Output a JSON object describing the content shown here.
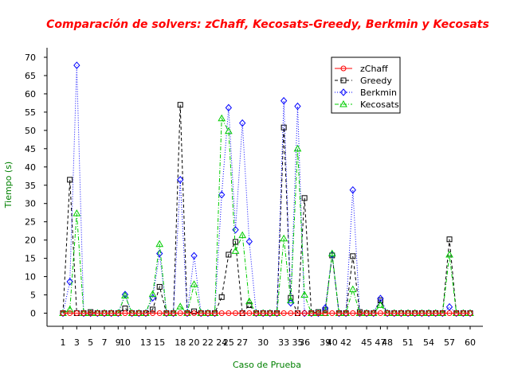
{
  "chart_data": {
    "type": "line",
    "title": "Comparación de solvers: zChaff, Kecosats-Greedy, Berkmin y Kecosats",
    "xlabel": "Caso de Prueba",
    "ylabel": "Tiempo (s)",
    "xlim": [
      1,
      60
    ],
    "ylim": [
      0,
      70
    ],
    "xticks": [
      1,
      3,
      5,
      7,
      9,
      10,
      13,
      15,
      18,
      20,
      22,
      24,
      25,
      27,
      30,
      33,
      35,
      36,
      39,
      40,
      42,
      45,
      47,
      48,
      51,
      54,
      57,
      60
    ],
    "xtick_labels": [
      "1",
      "3",
      "5",
      "7",
      "9",
      "10",
      "13",
      "15",
      "18",
      "20",
      "22",
      "24",
      "25",
      "27",
      "30",
      "33",
      "35",
      "36",
      "39",
      "40",
      "42",
      "45",
      "47",
      "48",
      "51",
      "54",
      "57",
      "60"
    ],
    "yticks": [
      0,
      5,
      10,
      15,
      20,
      25,
      30,
      35,
      40,
      45,
      50,
      55,
      60,
      65,
      70
    ],
    "ytick_labels": [
      "0",
      "5",
      "10",
      "15",
      "20",
      "25",
      "30",
      "35",
      "40",
      "45",
      "50",
      "55",
      "60",
      "65",
      "70"
    ],
    "grid": false,
    "legend_position": "top-right",
    "x": [
      1,
      2,
      3,
      4,
      5,
      6,
      7,
      8,
      9,
      10,
      11,
      12,
      13,
      14,
      15,
      16,
      17,
      18,
      19,
      20,
      21,
      22,
      23,
      24,
      25,
      26,
      27,
      28,
      29,
      30,
      31,
      32,
      33,
      34,
      35,
      36,
      37,
      38,
      39,
      40,
      41,
      42,
      43,
      44,
      45,
      46,
      47,
      48,
      49,
      50,
      51,
      52,
      53,
      54,
      55,
      56,
      57,
      58,
      59,
      60
    ],
    "series": [
      {
        "name": "zChaff",
        "color": "#ff0000",
        "marker": "circle",
        "dash": "solid",
        "values": [
          0,
          0,
          0,
          0,
          0,
          0,
          0,
          0,
          0,
          0,
          0,
          0,
          0,
          0,
          0,
          0,
          0,
          0,
          0,
          0,
          0,
          0,
          0,
          0,
          0,
          0,
          0,
          0,
          0,
          0,
          0,
          0,
          0,
          0,
          0,
          0,
          0,
          0,
          0,
          0,
          0,
          0,
          0,
          0,
          0,
          0,
          0,
          0,
          0,
          0,
          0,
          0,
          0,
          0,
          0,
          0,
          0,
          0,
          0,
          0
        ]
      },
      {
        "name": "Greedy",
        "color": "#000000",
        "marker": "square",
        "dash": "dashed",
        "values": [
          0,
          36.5,
          0,
          0,
          0.3,
          0,
          0,
          0,
          0,
          1.3,
          0,
          0,
          0,
          1,
          7.2,
          0,
          0,
          57,
          0,
          0.5,
          0,
          0,
          0,
          4.4,
          16,
          19.5,
          0,
          2.2,
          0,
          0,
          0,
          0,
          50.8,
          4.2,
          0,
          31.5,
          0,
          0.3,
          0.8,
          15.8,
          0,
          0,
          15.6,
          0.3,
          0,
          0,
          3.5,
          0,
          0,
          0,
          0,
          0,
          0,
          0,
          0,
          0,
          20.2,
          0,
          0,
          0
        ]
      },
      {
        "name": "Berkmin",
        "color": "#0000ff",
        "marker": "diamond",
        "dash": "dotted",
        "values": [
          0,
          8.6,
          67.8,
          0,
          0,
          0,
          0,
          0,
          0,
          5.1,
          0,
          0,
          0,
          4.2,
          16.3,
          0,
          0,
          36.5,
          0,
          15.7,
          0,
          0,
          0,
          32.4,
          56.2,
          22.8,
          52,
          19.6,
          0,
          0,
          0,
          0,
          58.1,
          2.8,
          56.6,
          0,
          0,
          0,
          1.4,
          16,
          0,
          0,
          33.7,
          0,
          0,
          0,
          4,
          0,
          0,
          0,
          0,
          0,
          0,
          0,
          0,
          0,
          1.7,
          0,
          0,
          0
        ]
      },
      {
        "name": "Kecosats",
        "color": "#00cc00",
        "marker": "triangle",
        "dash": "dashdot",
        "values": [
          0,
          1,
          27.3,
          0,
          0,
          0,
          0,
          0,
          0,
          4.8,
          0,
          0,
          0,
          5.2,
          18.9,
          0,
          0,
          1.8,
          0,
          7.9,
          0,
          0,
          0,
          53.3,
          49.8,
          17,
          21.3,
          3.2,
          0,
          0,
          0,
          0,
          20.4,
          3.5,
          45,
          5,
          0,
          0,
          0,
          16.3,
          0,
          0,
          6.5,
          0,
          0,
          0,
          2.2,
          0,
          0,
          0,
          0,
          0,
          0,
          0,
          0,
          0,
          16,
          0,
          0,
          0
        ]
      }
    ]
  }
}
